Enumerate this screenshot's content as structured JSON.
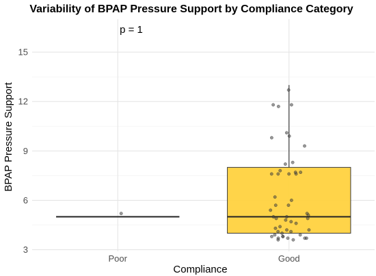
{
  "chart_data": {
    "type": "box",
    "title": "Variability of BPAP Pressure Support by Compliance Category",
    "xlabel": "Compliance",
    "ylabel": "BPAP Pressure Support",
    "annotation": "p = 1",
    "categories": [
      "Poor",
      "Good"
    ],
    "y_ticks": [
      3,
      6,
      9,
      12,
      15
    ],
    "ylim": [
      2.9,
      17.0
    ],
    "grid": true,
    "box_fill": "#FFD23F",
    "box_stroke": "#3a3a3a",
    "point_color": "#444444",
    "boxes": [
      {
        "category": "Poor",
        "min": 5.0,
        "q1": 5.0,
        "median": 5.0,
        "q3": 5.0,
        "max": 5.0
      },
      {
        "category": "Good",
        "min": 4.0,
        "q1": 4.0,
        "median": 5.0,
        "q3": 8.0,
        "max": 13.0
      }
    ],
    "points": [
      {
        "category": "Poor",
        "values": [
          5.2
        ]
      },
      {
        "category": "Good",
        "values": [
          12.7,
          11.8,
          11.8,
          11.7,
          10.1,
          9.9,
          9.8,
          9.3,
          8.3,
          8.2,
          7.8,
          7.7,
          7.7,
          7.6,
          7.6,
          7.6,
          7.6,
          6.2,
          6.0,
          5.7,
          5.7,
          5.4,
          5.2,
          5.1,
          5.0,
          5.0,
          4.9,
          4.9,
          4.8,
          4.7,
          4.6,
          4.4,
          4.3,
          4.2,
          4.2,
          4.1,
          4.1,
          4.0,
          3.9,
          3.9,
          3.8,
          3.8,
          3.8,
          3.7,
          3.7,
          3.7,
          3.7,
          3.6,
          3.6
        ]
      }
    ]
  }
}
